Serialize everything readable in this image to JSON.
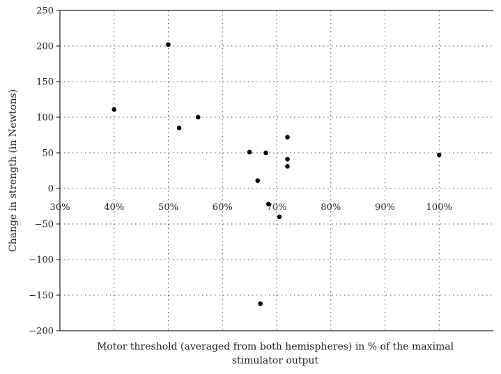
{
  "chart_data": {
    "type": "scatter",
    "xlabel_lines": [
      "Motor threshold (averaged from both hemispheres) in % of the maximal",
      "stimulator output"
    ],
    "ylabel": "Change in strength (in Newtons)",
    "xlim": [
      30,
      110
    ],
    "ylim": [
      -200,
      250
    ],
    "x_ticks": [
      30,
      40,
      50,
      60,
      70,
      80,
      90,
      100
    ],
    "x_tick_labels": [
      "30%",
      "40%",
      "50%",
      "60%",
      "70%",
      "80%",
      "90%",
      "100%"
    ],
    "y_ticks": [
      -200,
      -150,
      -100,
      -50,
      0,
      50,
      100,
      150,
      200,
      250
    ],
    "y_tick_labels": [
      "−200",
      "−150",
      "−100",
      "−50",
      "0",
      "50",
      "100",
      "150",
      "200",
      "250"
    ],
    "grid": true,
    "marker_color": "#000000",
    "points": [
      {
        "x": 40,
        "y": 111
      },
      {
        "x": 50,
        "y": 202
      },
      {
        "x": 52,
        "y": 85
      },
      {
        "x": 55.5,
        "y": 100
      },
      {
        "x": 65,
        "y": 51
      },
      {
        "x": 66.5,
        "y": 11
      },
      {
        "x": 67,
        "y": -162
      },
      {
        "x": 68,
        "y": 50
      },
      {
        "x": 68.5,
        "y": -22
      },
      {
        "x": 70.5,
        "y": -40
      },
      {
        "x": 72,
        "y": 72
      },
      {
        "x": 72,
        "y": 41
      },
      {
        "x": 72,
        "y": 31
      },
      {
        "x": 100,
        "y": 47
      }
    ]
  }
}
